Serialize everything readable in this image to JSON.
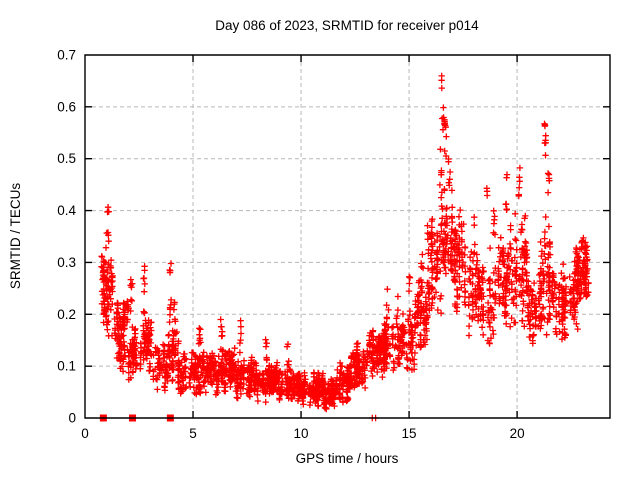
{
  "title": "Day 086 of 2023, SRMTID for receiver p014",
  "xlabel": "GPS time / hours",
  "ylabel": "SRMTID / TECUs",
  "colors": {
    "marker": "#ff0000",
    "axis": "#000000",
    "grid": "#b8b8b8",
    "background": "#ffffff"
  },
  "chart_data": {
    "type": "scatter",
    "title": "Day 086 of 2023, SRMTID for receiver p014",
    "xlabel": "GPS time / hours",
    "ylabel": "SRMTID / TECUs",
    "marker": "plus",
    "marker_color": "#ff0000",
    "grid": true,
    "xlim": [
      0,
      24.3
    ],
    "ylim": [
      0,
      0.7
    ],
    "x_ticks": [
      {
        "v": 0,
        "label": "0"
      },
      {
        "v": 5,
        "label": "5"
      },
      {
        "v": 10,
        "label": "10"
      },
      {
        "v": 15,
        "label": "15"
      },
      {
        "v": 20,
        "label": "20"
      }
    ],
    "y_ticks": [
      {
        "v": 0,
        "label": "0"
      },
      {
        "v": 0.1,
        "label": "0.1"
      },
      {
        "v": 0.2,
        "label": "0.2"
      },
      {
        "v": 0.3,
        "label": "0.3"
      },
      {
        "v": 0.4,
        "label": "0.4"
      },
      {
        "v": 0.5,
        "label": "0.5"
      },
      {
        "v": 0.6,
        "label": "0.6"
      },
      {
        "v": 0.7,
        "label": "0.7"
      }
    ],
    "seed": 42,
    "bands": [
      {
        "x0": 0.8,
        "x1": 1.3,
        "n": 80,
        "y0": 0.15,
        "y1": 0.33
      },
      {
        "x0": 0.75,
        "x1": 0.95,
        "n": 12,
        "y0": 0.26,
        "y1": 0.33
      },
      {
        "x0": 1.3,
        "x1": 2.0,
        "n": 100,
        "y0": 0.09,
        "y1": 0.24
      },
      {
        "x0": 2.0,
        "x1": 2.6,
        "n": 60,
        "y0": 0.06,
        "y1": 0.18
      },
      {
        "x0": 2.6,
        "x1": 3.15,
        "n": 65,
        "y0": 0.07,
        "y1": 0.2
      },
      {
        "x0": 3.15,
        "x1": 3.8,
        "n": 55,
        "y0": 0.05,
        "y1": 0.15
      },
      {
        "x0": 3.8,
        "x1": 4.35,
        "n": 70,
        "y0": 0.06,
        "y1": 0.2
      },
      {
        "x0": 4.35,
        "x1": 5.0,
        "n": 55,
        "y0": 0.04,
        "y1": 0.13
      },
      {
        "x0": 5.0,
        "x1": 6.0,
        "n": 120,
        "y0": 0.04,
        "y1": 0.14
      },
      {
        "x0": 6.0,
        "x1": 7.0,
        "n": 120,
        "y0": 0.04,
        "y1": 0.14
      },
      {
        "x0": 7.0,
        "x1": 8.0,
        "n": 120,
        "y0": 0.03,
        "y1": 0.12
      },
      {
        "x0": 8.0,
        "x1": 9.0,
        "n": 120,
        "y0": 0.03,
        "y1": 0.11
      },
      {
        "x0": 9.0,
        "x1": 10.0,
        "n": 130,
        "y0": 0.03,
        "y1": 0.1
      },
      {
        "x0": 10.0,
        "x1": 11.0,
        "n": 140,
        "y0": 0.02,
        "y1": 0.09
      },
      {
        "x0": 11.0,
        "x1": 11.6,
        "n": 90,
        "y0": 0.015,
        "y1": 0.08
      },
      {
        "x0": 11.6,
        "x1": 12.3,
        "n": 100,
        "y0": 0.03,
        "y1": 0.11
      },
      {
        "x0": 12.3,
        "x1": 13.0,
        "n": 90,
        "y0": 0.05,
        "y1": 0.14
      },
      {
        "x0": 13.0,
        "x1": 13.8,
        "n": 100,
        "y0": 0.07,
        "y1": 0.17
      },
      {
        "x0": 13.8,
        "x1": 14.6,
        "n": 90,
        "y0": 0.08,
        "y1": 0.19
      },
      {
        "x0": 14.6,
        "x1": 15.3,
        "n": 80,
        "y0": 0.09,
        "y1": 0.21
      },
      {
        "x0": 15.3,
        "x1": 16.0,
        "n": 80,
        "y0": 0.12,
        "y1": 0.28
      },
      {
        "x0": 16.0,
        "x1": 16.5,
        "n": 60,
        "y0": 0.2,
        "y1": 0.4
      },
      {
        "x0": 16.5,
        "x1": 17.0,
        "n": 70,
        "y0": 0.25,
        "y1": 0.45
      },
      {
        "x0": 17.0,
        "x1": 17.6,
        "n": 80,
        "y0": 0.2,
        "y1": 0.42
      },
      {
        "x0": 17.6,
        "x1": 18.4,
        "n": 70,
        "y0": 0.13,
        "y1": 0.33
      },
      {
        "x0": 18.4,
        "x1": 19.2,
        "n": 70,
        "y0": 0.14,
        "y1": 0.35
      },
      {
        "x0": 19.2,
        "x1": 19.8,
        "n": 70,
        "y0": 0.15,
        "y1": 0.4
      },
      {
        "x0": 19.8,
        "x1": 20.5,
        "n": 80,
        "y0": 0.17,
        "y1": 0.42
      },
      {
        "x0": 20.5,
        "x1": 21.1,
        "n": 60,
        "y0": 0.13,
        "y1": 0.3
      },
      {
        "x0": 21.1,
        "x1": 21.6,
        "n": 70,
        "y0": 0.15,
        "y1": 0.4
      },
      {
        "x0": 21.6,
        "x1": 22.3,
        "n": 80,
        "y0": 0.14,
        "y1": 0.3
      },
      {
        "x0": 22.3,
        "x1": 22.9,
        "n": 80,
        "y0": 0.15,
        "y1": 0.33
      },
      {
        "x0": 22.9,
        "x1": 23.3,
        "n": 70,
        "y0": 0.22,
        "y1": 0.36
      }
    ],
    "columns": [
      {
        "x": 1.05,
        "n": 8,
        "y0": 0.33,
        "y1": 0.41
      },
      {
        "x": 2.15,
        "n": 7,
        "y0": 0.18,
        "y1": 0.27
      },
      {
        "x": 2.75,
        "n": 9,
        "y0": 0.2,
        "y1": 0.3
      },
      {
        "x": 3.95,
        "n": 10,
        "y0": 0.18,
        "y1": 0.3
      },
      {
        "x": 4.15,
        "n": 6,
        "y0": 0.15,
        "y1": 0.26
      },
      {
        "x": 5.3,
        "n": 7,
        "y0": 0.14,
        "y1": 0.19
      },
      {
        "x": 6.3,
        "n": 7,
        "y0": 0.13,
        "y1": 0.19
      },
      {
        "x": 7.2,
        "n": 6,
        "y0": 0.12,
        "y1": 0.19
      },
      {
        "x": 8.4,
        "n": 6,
        "y0": 0.11,
        "y1": 0.17
      },
      {
        "x": 9.4,
        "n": 5,
        "y0": 0.1,
        "y1": 0.15
      },
      {
        "x": 12.6,
        "n": 5,
        "y0": 0.12,
        "y1": 0.17
      },
      {
        "x": 13.3,
        "n": 6,
        "y0": 0.14,
        "y1": 0.2
      },
      {
        "x": 14.0,
        "n": 6,
        "y0": 0.17,
        "y1": 0.25
      },
      {
        "x": 14.45,
        "n": 6,
        "y0": 0.17,
        "y1": 0.25
      },
      {
        "x": 15.0,
        "n": 6,
        "y0": 0.19,
        "y1": 0.28
      },
      {
        "x": 15.6,
        "n": 6,
        "y0": 0.24,
        "y1": 0.33
      },
      {
        "x": 15.9,
        "n": 7,
        "y0": 0.27,
        "y1": 0.4
      },
      {
        "x": 16.45,
        "n": 6,
        "y0": 0.42,
        "y1": 0.52
      },
      {
        "x": 16.55,
        "n": 7,
        "y0": 0.55,
        "y1": 0.66
      },
      {
        "x": 16.68,
        "n": 10,
        "y0": 0.5,
        "y1": 0.58
      },
      {
        "x": 16.85,
        "n": 6,
        "y0": 0.44,
        "y1": 0.5
      },
      {
        "x": 18.05,
        "n": 5,
        "y0": 0.3,
        "y1": 0.4
      },
      {
        "x": 18.6,
        "n": 3,
        "y0": 0.42,
        "y1": 0.46
      },
      {
        "x": 18.95,
        "n": 6,
        "y0": 0.35,
        "y1": 0.46
      },
      {
        "x": 19.5,
        "n": 6,
        "y0": 0.4,
        "y1": 0.48
      },
      {
        "x": 20.1,
        "n": 6,
        "y0": 0.42,
        "y1": 0.49
      },
      {
        "x": 21.3,
        "n": 9,
        "y0": 0.5,
        "y1": 0.58
      },
      {
        "x": 21.45,
        "n": 5,
        "y0": 0.42,
        "y1": 0.48
      }
    ],
    "baseline_squares_x": [
      0.85,
      2.2,
      3.95
    ],
    "baseline_plus_x": [
      13.3,
      13.45
    ]
  }
}
